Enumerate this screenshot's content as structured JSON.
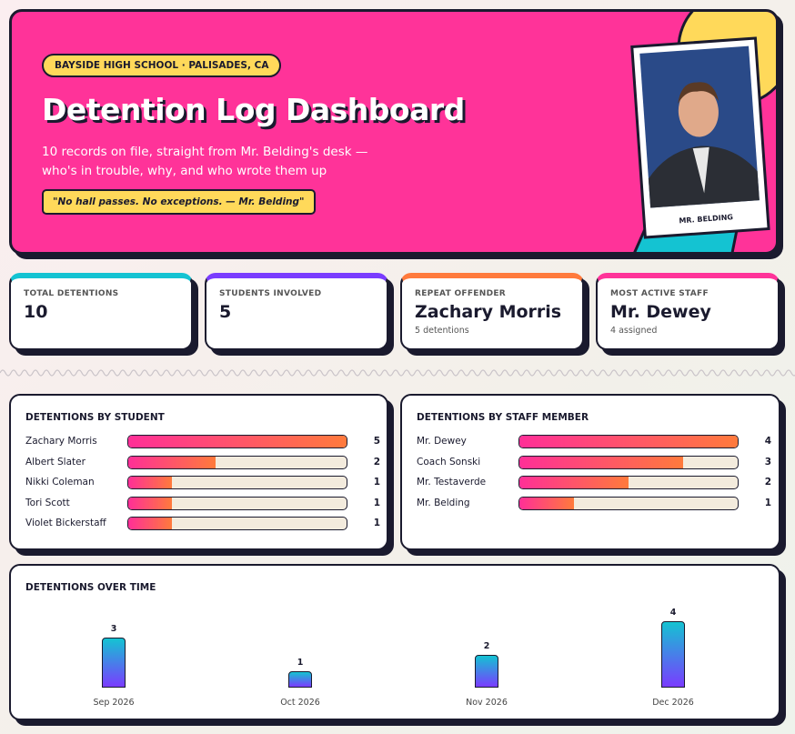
{
  "header": {
    "badge": "BAYSIDE HIGH SCHOOL · PALISADES, CA",
    "title": "Detention Log Dashboard",
    "subtitle": "10 records on file, straight from Mr. Belding's desk — who's in trouble, why, and who wrote them up",
    "quote": "\"No hall passes. No exceptions. — Mr. Belding\"",
    "photo_caption": "MR. BELDING"
  },
  "stats": [
    {
      "label": "TOTAL DETENTIONS",
      "value": 10
    },
    {
      "label": "STUDENTS INVOLVED",
      "value": 5
    },
    {
      "label": "REPEAT OFFENDER",
      "value": "Zachary Morris",
      "note": "5 detentions"
    },
    {
      "label": "MOST ACTIVE STAFF",
      "value": "Mr. Dewey",
      "note": "4 assigned"
    }
  ],
  "by_student": {
    "title": "DETENTIONS BY STUDENT",
    "categories": [
      "Zachary Morris",
      "Albert Slater",
      "Nikki Coleman",
      "Tori Scott",
      "Violet Bickerstaff"
    ],
    "values": [
      5,
      2,
      1,
      1,
      1
    ]
  },
  "by_staff": {
    "title": "DETENTIONS BY STAFF MEMBER",
    "categories": [
      "Mr. Dewey",
      "Coach Sonski",
      "Mr. Testaverde",
      "Mr. Belding"
    ],
    "values": [
      4,
      3,
      2,
      1
    ]
  },
  "over_time": {
    "title": "DETENTIONS OVER TIME",
    "x": [
      "Sep 2026",
      "Oct 2026",
      "Nov 2026",
      "Dec 2026"
    ],
    "values": [
      3,
      1,
      2,
      4
    ]
  }
}
